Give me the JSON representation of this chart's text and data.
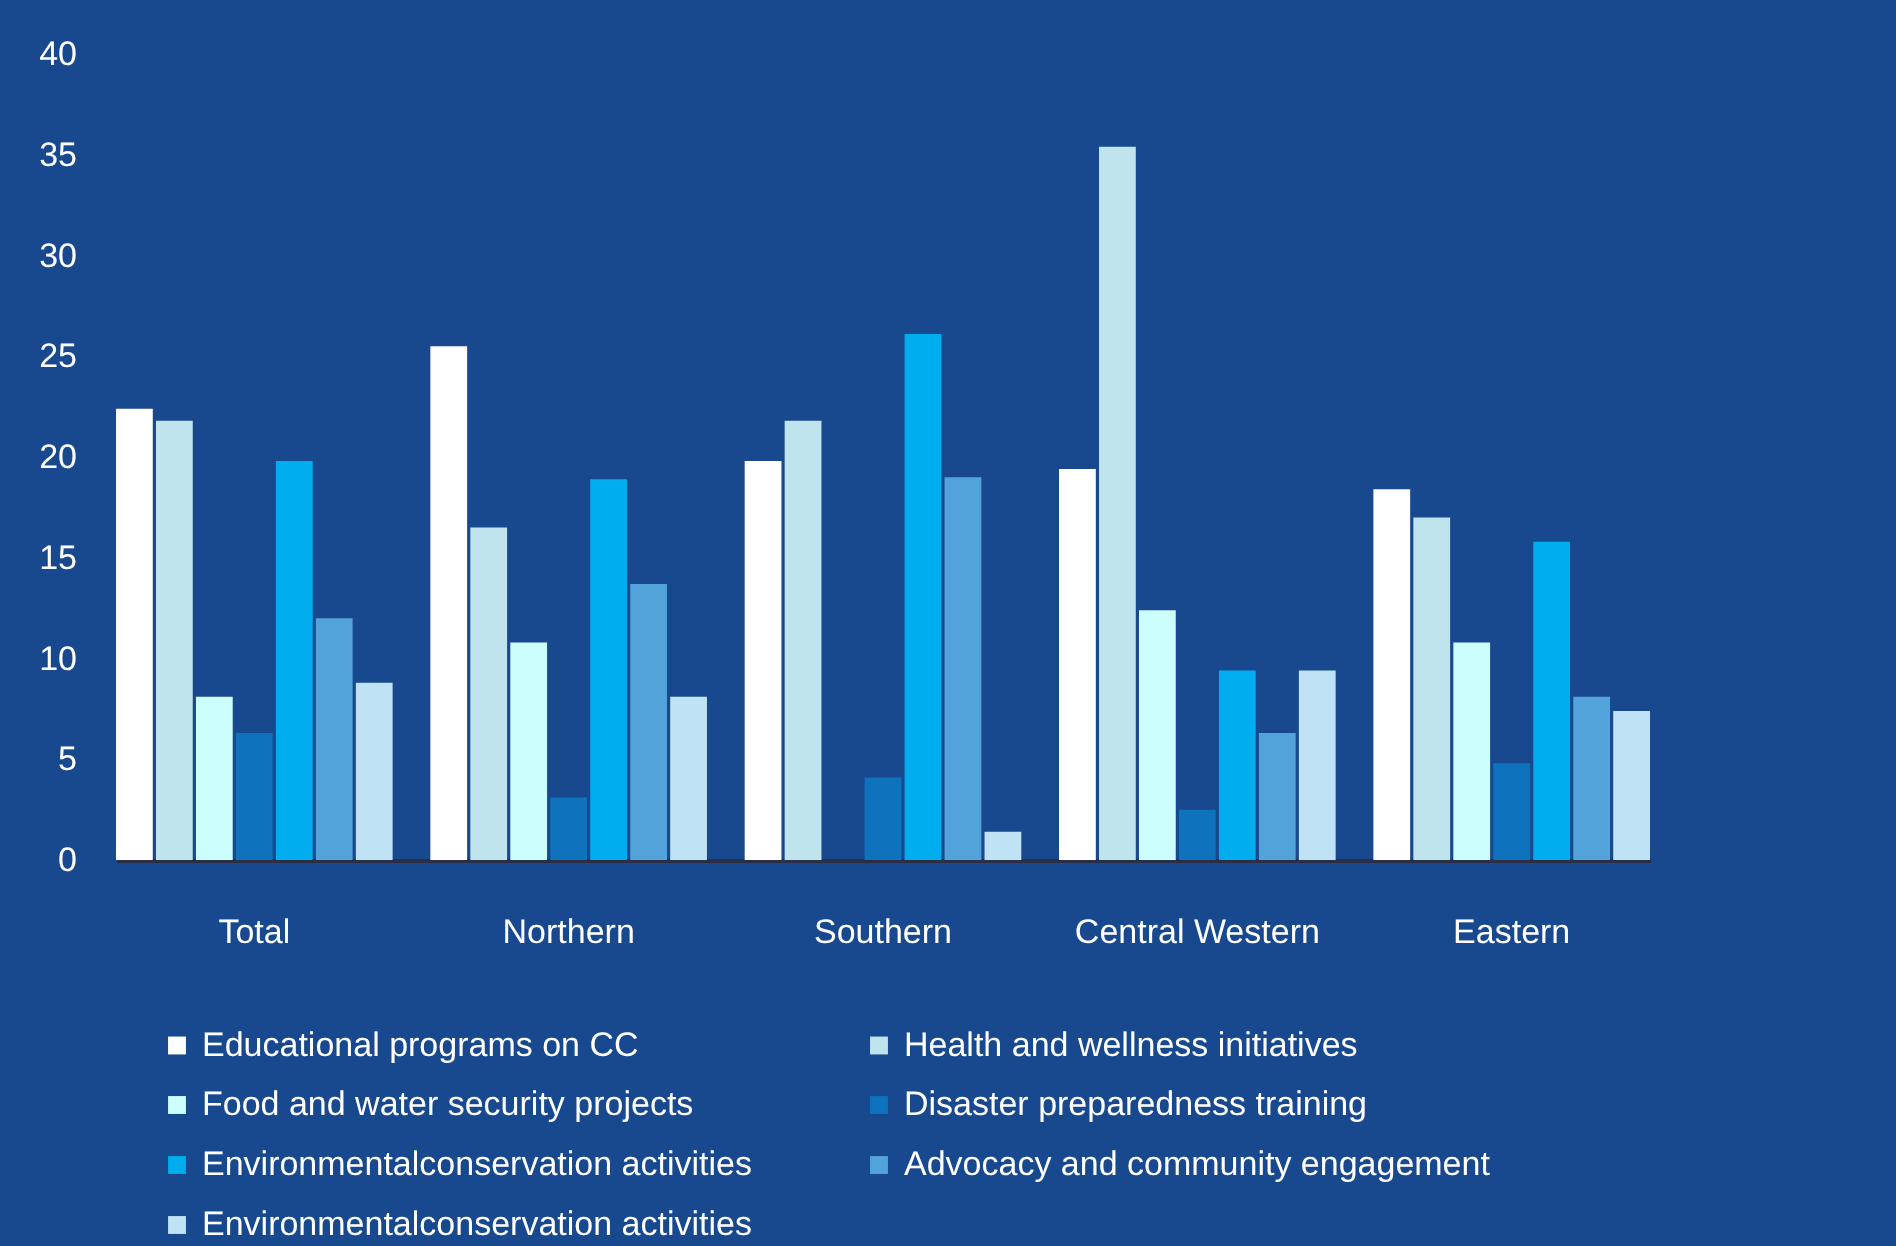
{
  "chart_data": {
    "type": "bar",
    "categories": [
      "Total",
      "Northern",
      "Southern",
      "Central Western",
      "Eastern"
    ],
    "series": [
      {
        "name": "Educational programs on CC",
        "color": "#ffffff",
        "values": [
          22.4,
          25.5,
          19.8,
          19.4,
          18.4
        ]
      },
      {
        "name": "Health and wellness initiatives",
        "color": "#bfe4ee",
        "values": [
          21.8,
          16.5,
          21.8,
          35.4,
          17.0
        ]
      },
      {
        "name": "Food and water security projects",
        "color": "#ccfefe",
        "values": [
          8.1,
          10.8,
          0,
          12.4,
          10.8
        ]
      },
      {
        "name": "Disaster preparedness training",
        "color": "#0e72bc",
        "values": [
          6.3,
          3.1,
          4.1,
          2.5,
          4.8
        ]
      },
      {
        "name": "Environmentalconservation activities",
        "color": "#00adef",
        "values": [
          19.8,
          18.9,
          26.1,
          9.4,
          15.8
        ]
      },
      {
        "name": "Advocacy and community engagement",
        "color": "#52a3d9",
        "values": [
          12.0,
          13.7,
          19.0,
          6.3,
          8.1
        ]
      },
      {
        "name": "Environmentalconservation activities",
        "color": "#c0e2f5",
        "values": [
          8.8,
          8.1,
          1.4,
          9.4,
          7.4
        ]
      }
    ],
    "ylim": [
      0,
      40
    ],
    "yticks": [
      0,
      5,
      10,
      15,
      20,
      25,
      30,
      35,
      40
    ],
    "legend": "bottom"
  }
}
